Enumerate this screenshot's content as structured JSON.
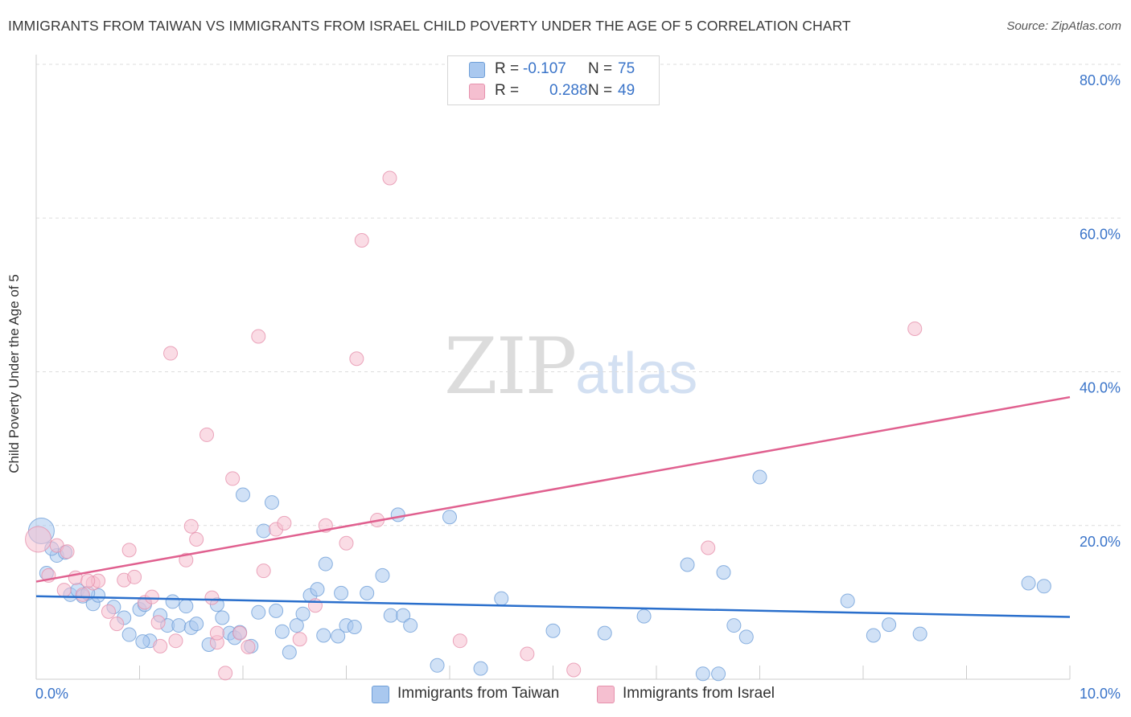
{
  "title": "IMMIGRANTS FROM TAIWAN VS IMMIGRANTS FROM ISRAEL CHILD POVERTY UNDER THE AGE OF 5 CORRELATION CHART",
  "source": "Source: ZipAtlas.com",
  "watermark": {
    "zip": "ZIP",
    "atlas": "atlas"
  },
  "legend": {
    "rows": [
      {
        "r_label": "R =",
        "r_value": "-0.107",
        "n_label": "N =",
        "n_value": "75"
      },
      {
        "r_label": "R =",
        "r_value": "0.288",
        "n_label": "N =",
        "n_value": "49"
      }
    ]
  },
  "colors": {
    "taiwan_fill": "#a9c8ef",
    "taiwan_stroke": "#6f9fd8",
    "taiwan_line": "#2a6fcc",
    "israel_fill": "#f5bfd0",
    "israel_stroke": "#e691ad",
    "israel_line": "#e0608f",
    "tick_label": "#3a74c9",
    "grid": "#dddddd"
  },
  "chart_data": {
    "type": "scatter",
    "title": "IMMIGRANTS FROM TAIWAN VS IMMIGRANTS FROM ISRAEL CHILD POVERTY UNDER THE AGE OF 5 CORRELATION CHART",
    "xlabel": "",
    "ylabel": "Child Poverty Under the Age of 5",
    "xlim": [
      0,
      10
    ],
    "ylim": [
      0,
      80
    ],
    "x_tick_labels": [
      "0.0%",
      "10.0%"
    ],
    "y_tick_values": [
      20,
      40,
      60,
      80
    ],
    "y_tick_labels": [
      "20.0%",
      "40.0%",
      "60.0%",
      "80.0%"
    ],
    "grid": "horizontal dashed",
    "legend_position": "bottom",
    "series": [
      {
        "name": "Immigrants from Taiwan",
        "color": "#a9c8ef",
        "trend": [
          [
            0,
            10.8
          ],
          [
            10,
            8.1
          ]
        ],
        "points": [
          [
            0.05,
            19.3
          ],
          [
            0.1,
            13.8
          ],
          [
            0.2,
            16.1
          ],
          [
            0.28,
            16.5
          ],
          [
            0.33,
            11.0
          ],
          [
            0.4,
            11.6
          ],
          [
            0.45,
            10.8
          ],
          [
            0.55,
            9.8
          ],
          [
            0.6,
            10.9
          ],
          [
            0.75,
            9.4
          ],
          [
            0.85,
            8.0
          ],
          [
            0.9,
            5.8
          ],
          [
            1.0,
            9.1
          ],
          [
            1.05,
            9.7
          ],
          [
            1.1,
            5.0
          ],
          [
            1.2,
            8.3
          ],
          [
            1.27,
            7.0
          ],
          [
            1.32,
            10.1
          ],
          [
            1.38,
            7.0
          ],
          [
            1.45,
            9.5
          ],
          [
            1.5,
            6.7
          ],
          [
            1.55,
            7.2
          ],
          [
            1.67,
            4.5
          ],
          [
            1.75,
            9.7
          ],
          [
            1.8,
            8.0
          ],
          [
            1.87,
            6.0
          ],
          [
            1.92,
            5.4
          ],
          [
            1.97,
            6.1
          ],
          [
            2.0,
            24.0
          ],
          [
            2.08,
            4.3
          ],
          [
            2.15,
            8.7
          ],
          [
            2.2,
            19.3
          ],
          [
            2.28,
            23.0
          ],
          [
            2.32,
            8.9
          ],
          [
            2.38,
            6.2
          ],
          [
            2.45,
            3.5
          ],
          [
            2.52,
            7.0
          ],
          [
            2.58,
            8.5
          ],
          [
            2.65,
            10.9
          ],
          [
            2.72,
            11.7
          ],
          [
            2.78,
            5.7
          ],
          [
            2.8,
            15.0
          ],
          [
            2.92,
            5.6
          ],
          [
            3.0,
            7.0
          ],
          [
            3.08,
            6.8
          ],
          [
            3.2,
            11.2
          ],
          [
            3.35,
            13.5
          ],
          [
            3.43,
            8.3
          ],
          [
            3.5,
            21.4
          ],
          [
            3.55,
            8.3
          ],
          [
            3.62,
            7.0
          ],
          [
            3.88,
            1.8
          ],
          [
            4.0,
            21.1
          ],
          [
            4.3,
            1.4
          ],
          [
            4.5,
            10.5
          ],
          [
            5.0,
            6.3
          ],
          [
            5.5,
            6.0
          ],
          [
            5.88,
            8.2
          ],
          [
            6.3,
            14.9
          ],
          [
            6.45,
            0.7
          ],
          [
            6.6,
            0.7
          ],
          [
            6.65,
            13.9
          ],
          [
            6.75,
            7.0
          ],
          [
            6.87,
            5.5
          ],
          [
            7.0,
            26.3
          ],
          [
            7.85,
            10.2
          ],
          [
            8.1,
            5.7
          ],
          [
            8.25,
            7.1
          ],
          [
            8.55,
            5.9
          ],
          [
            9.6,
            12.5
          ],
          [
            9.75,
            12.1
          ],
          [
            0.15,
            17.0
          ],
          [
            0.5,
            11.2
          ],
          [
            1.03,
            4.9
          ],
          [
            2.95,
            11.2
          ]
        ]
      },
      {
        "name": "Immigrants from Israel",
        "color": "#f5bfd0",
        "trend": [
          [
            0,
            12.7
          ],
          [
            10,
            36.7
          ]
        ],
        "points": [
          [
            0.02,
            18.2
          ],
          [
            0.12,
            13.5
          ],
          [
            0.2,
            17.4
          ],
          [
            0.27,
            11.6
          ],
          [
            0.3,
            16.6
          ],
          [
            0.38,
            13.2
          ],
          [
            0.45,
            11.0
          ],
          [
            0.55,
            12.5
          ],
          [
            0.6,
            12.8
          ],
          [
            0.7,
            8.8
          ],
          [
            0.78,
            7.2
          ],
          [
            0.85,
            12.9
          ],
          [
            0.9,
            16.8
          ],
          [
            0.95,
            13.3
          ],
          [
            1.05,
            10.0
          ],
          [
            1.12,
            10.7
          ],
          [
            1.18,
            7.4
          ],
          [
            1.2,
            4.3
          ],
          [
            1.3,
            42.4
          ],
          [
            1.35,
            5.0
          ],
          [
            1.45,
            15.5
          ],
          [
            1.5,
            19.9
          ],
          [
            1.55,
            18.2
          ],
          [
            1.65,
            31.8
          ],
          [
            1.7,
            10.6
          ],
          [
            1.75,
            4.8
          ],
          [
            1.83,
            0.8
          ],
          [
            1.9,
            26.1
          ],
          [
            1.97,
            6.0
          ],
          [
            2.05,
            4.2
          ],
          [
            2.15,
            44.6
          ],
          [
            2.2,
            14.1
          ],
          [
            2.32,
            19.5
          ],
          [
            2.4,
            20.3
          ],
          [
            2.55,
            5.2
          ],
          [
            2.7,
            9.6
          ],
          [
            2.8,
            20.0
          ],
          [
            3.0,
            17.7
          ],
          [
            3.1,
            41.7
          ],
          [
            3.15,
            57.1
          ],
          [
            3.3,
            20.7
          ],
          [
            3.42,
            65.2
          ],
          [
            4.1,
            5.0
          ],
          [
            4.75,
            3.3
          ],
          [
            5.2,
            1.2
          ],
          [
            6.5,
            17.1
          ],
          [
            8.5,
            45.6
          ],
          [
            1.75,
            6.0
          ],
          [
            0.5,
            12.8
          ]
        ]
      }
    ]
  }
}
